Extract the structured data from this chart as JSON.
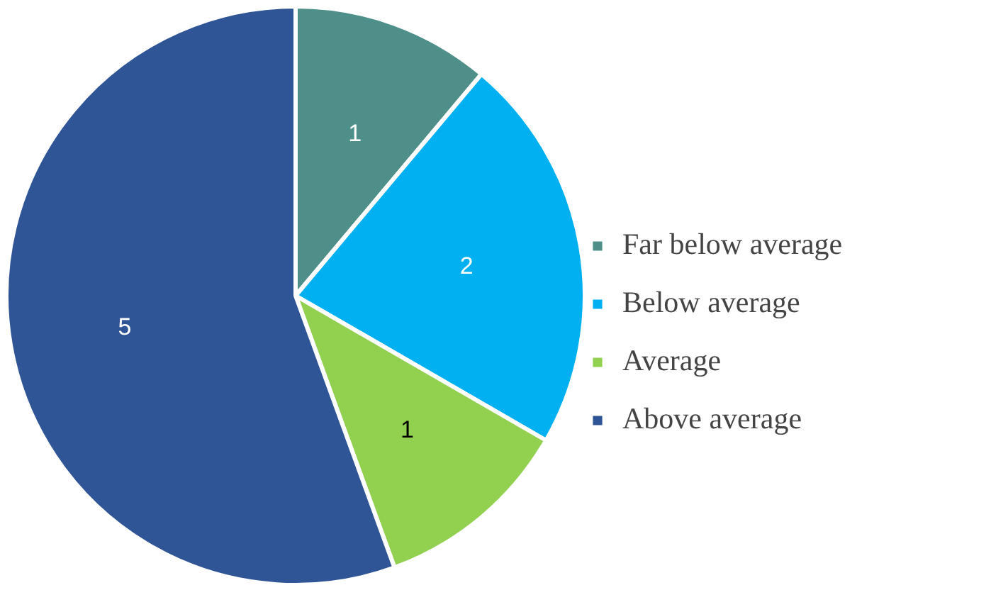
{
  "chart_data": {
    "type": "pie",
    "categories": [
      "Far below average",
      "Below average",
      "Average",
      "Above average"
    ],
    "values": [
      1,
      2,
      1,
      5
    ],
    "colors": [
      "#4e9089",
      "#00b0f0",
      "#92d050",
      "#2f5597"
    ],
    "data_labels": true,
    "legend": "right"
  }
}
